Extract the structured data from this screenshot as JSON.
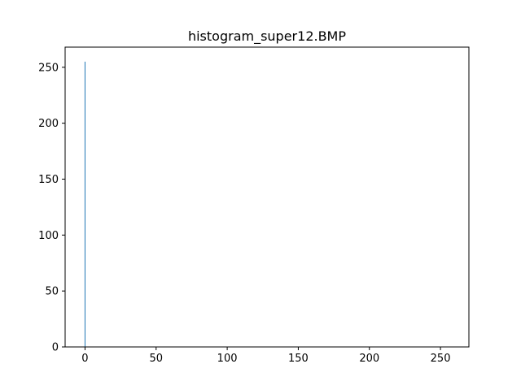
{
  "chart_data": {
    "type": "bar",
    "title": "histogram_super12.BMP",
    "xlabel": "",
    "ylabel": "",
    "xlim": [
      -14,
      270
    ],
    "ylim": [
      0,
      268
    ],
    "xticks": [
      0,
      50,
      100,
      150,
      200,
      250
    ],
    "yticks": [
      0,
      50,
      100,
      150,
      200,
      250
    ],
    "grid": false,
    "legend": "none",
    "bar_color": "#1f77b4",
    "series": [
      {
        "x": [
          0
        ],
        "values": [
          255
        ]
      }
    ]
  }
}
